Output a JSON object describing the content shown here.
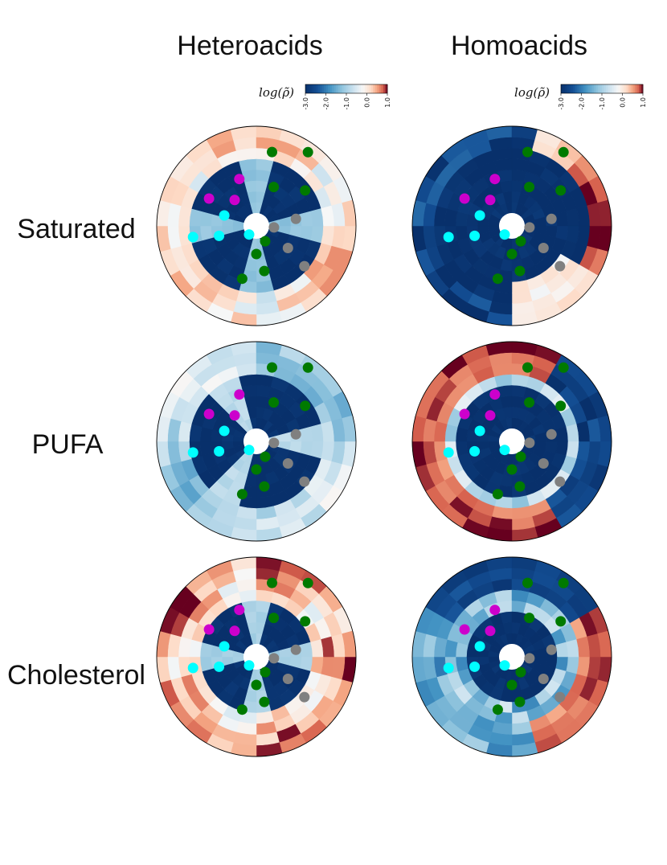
{
  "chart_data": {
    "type": "heatmap",
    "subtype": "polar-density-grid",
    "colormap": "diverging blue-white-red",
    "colors": {
      "low": "#08306b",
      "mid": "#f7f7f7",
      "high": "#67001f"
    },
    "columns": [
      "Heteroacids",
      "Homoacids"
    ],
    "rows": [
      "Saturated",
      "PUFA",
      "Cholesterol"
    ],
    "colorbar": {
      "label": "log(ρ̃)",
      "range": [
        -3.0,
        1.0
      ],
      "ticks": [
        "-3.0",
        "-2.0",
        "-1.0",
        "0.0",
        "1.0"
      ]
    },
    "grid": {
      "rings": 8,
      "sectors": 24,
      "inner_hole": true
    },
    "marker_colors": {
      "green": "#007a00",
      "magenta": "#cc00cc",
      "cyan": "#00ffff",
      "gray": "#808080"
    },
    "panels": [
      {
        "row": "Saturated",
        "column": "Heteroacids",
        "pattern": "hetero",
        "peak": 0.6,
        "center_low": -3.0
      },
      {
        "row": "Saturated",
        "column": "Homoacids",
        "pattern": "homo_sat",
        "peak": 1.0,
        "center_low": -3.0
      },
      {
        "row": "PUFA",
        "column": "Heteroacids",
        "pattern": "hetero_pufa",
        "peak": 0.3,
        "center_low": -3.0
      },
      {
        "row": "PUFA",
        "column": "Homoacids",
        "pattern": "homo_pufa",
        "peak": 1.0,
        "center_low": -3.0
      },
      {
        "row": "Cholesterol",
        "column": "Heteroacids",
        "pattern": "hetero_chol",
        "peak": 1.0,
        "center_low": -3.0
      },
      {
        "row": "Cholesterol",
        "column": "Homoacids",
        "pattern": "homo_chol",
        "peak": 1.0,
        "center_low": -3.0
      }
    ]
  }
}
